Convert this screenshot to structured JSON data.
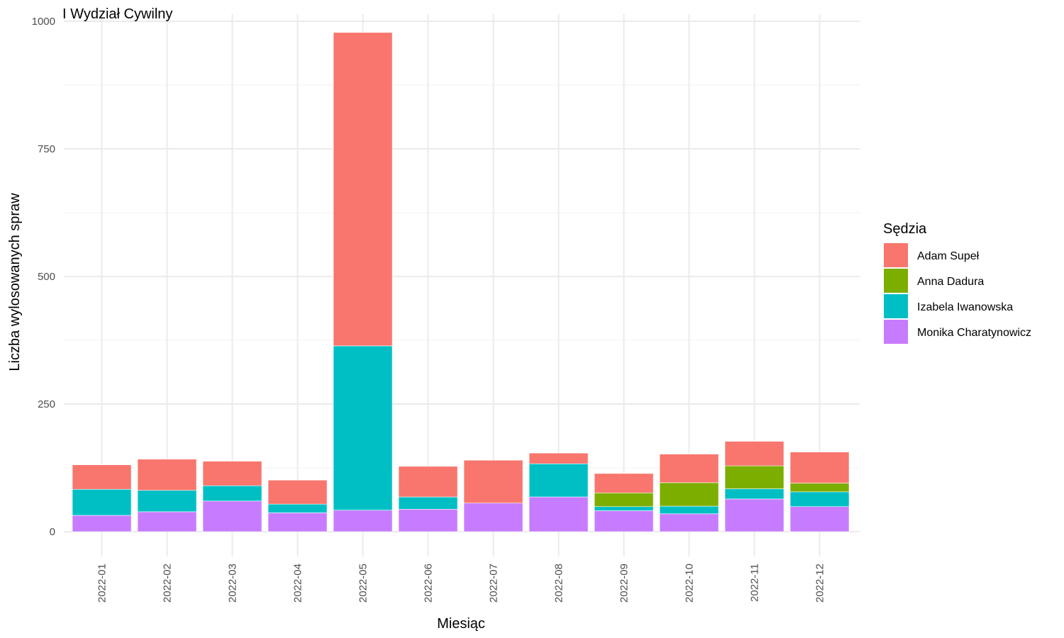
{
  "chart_data": {
    "type": "bar",
    "stacked": true,
    "title": "I Wydział Cywilny",
    "xlabel": "Miesiąc",
    "ylabel": "Liczba wylosowanych spraw",
    "ylim": [
      0,
      1000
    ],
    "yticks": [
      0,
      250,
      500,
      750,
      1000
    ],
    "grid": true,
    "legend": {
      "title": "Sędzia",
      "position": "right"
    },
    "categories": [
      "2022-01",
      "2022-02",
      "2022-03",
      "2022-04",
      "2022-05",
      "2022-06",
      "2022-07",
      "2022-08",
      "2022-09",
      "2022-10",
      "2022-11",
      "2022-12"
    ],
    "series": [
      {
        "name": "Monika Charatynowicz",
        "color": "#C77CFF",
        "values": [
          32,
          39,
          60,
          37,
          42,
          44,
          56,
          68,
          41,
          35,
          64,
          49
        ]
      },
      {
        "name": "Izabela Iwanowska",
        "color": "#00BFC4",
        "values": [
          51,
          42,
          30,
          17,
          322,
          24,
          0,
          65,
          8,
          15,
          20,
          29
        ]
      },
      {
        "name": "Anna Dadura",
        "color": "#7CAE00",
        "values": [
          0,
          0,
          0,
          0,
          0,
          0,
          0,
          0,
          27,
          46,
          45,
          17
        ]
      },
      {
        "name": "Adam Supeł",
        "color": "#F8766D",
        "values": [
          48,
          61,
          48,
          47,
          614,
          60,
          84,
          21,
          38,
          56,
          48,
          61
        ]
      }
    ],
    "legend_order": [
      "Adam Supeł",
      "Anna Dadura",
      "Izabela Iwanowska",
      "Monika Charatynowicz"
    ]
  }
}
